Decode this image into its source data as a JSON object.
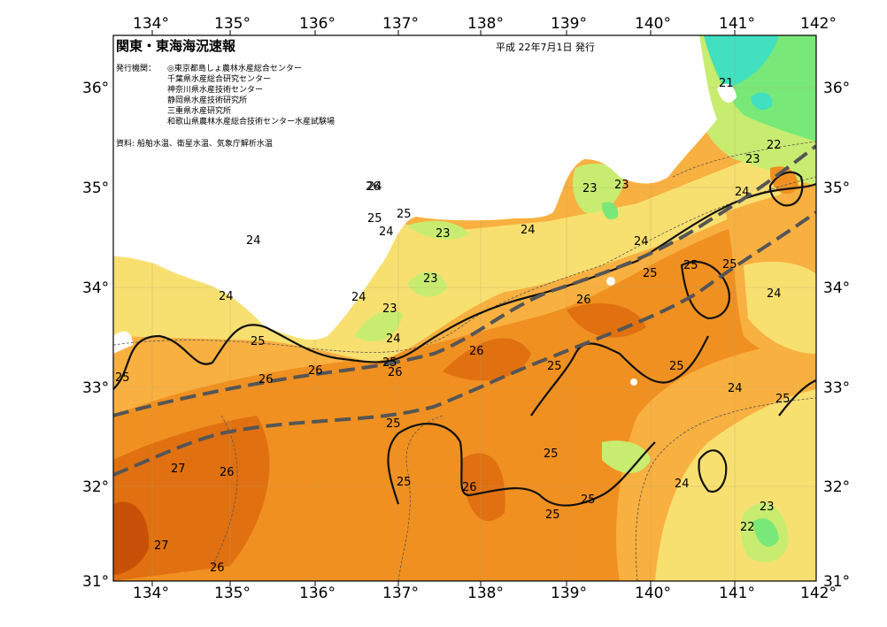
{
  "map": {
    "title": "関東・東海海況速報",
    "issued": "平成 22年7月1日 発行",
    "issuer_label": "発行機関：",
    "issuers": [
      "◎東京都島しょ農林水産総合センター",
      "千葉県水産総合研究センター",
      "神奈川県水産技術センター",
      "静岡県水産技術研究所",
      "三重県水産研究所",
      "和歌山県農林水産総合技術センター水産試験場"
    ],
    "sources": "資料: 船舶水温、衛星水温、気象庁解析水温",
    "lon_labels": [
      "134°",
      "135°",
      "136°",
      "137°",
      "138°",
      "139°",
      "140°",
      "141°",
      "142°"
    ],
    "lat_labels": [
      "36°",
      "35°",
      "34°",
      "33°",
      "32°",
      "31°"
    ],
    "contour_labels": [
      "21",
      "22",
      "22",
      "23",
      "23",
      "23",
      "23",
      "23",
      "23",
      "23",
      "24",
      "24",
      "24",
      "24",
      "24",
      "24",
      "24",
      "24",
      "24",
      "24",
      "24",
      "24",
      "25",
      "25",
      "25",
      "25",
      "25",
      "25",
      "25",
      "25",
      "25",
      "25",
      "25",
      "25",
      "25",
      "25",
      "25",
      "25",
      "26",
      "26",
      "26",
      "26",
      "26",
      "26",
      "26",
      "26",
      "26",
      "27",
      "27"
    ],
    "colors": {
      "t21": "#40e0c0",
      "t22": "#78e878",
      "t23": "#c8ec70",
      "t24": "#f8e070",
      "t25": "#f8b040",
      "t26": "#f09020",
      "t27": "#e07010",
      "t28": "#c85008",
      "land": "#ffffff",
      "kuroshio": "#555555"
    }
  }
}
